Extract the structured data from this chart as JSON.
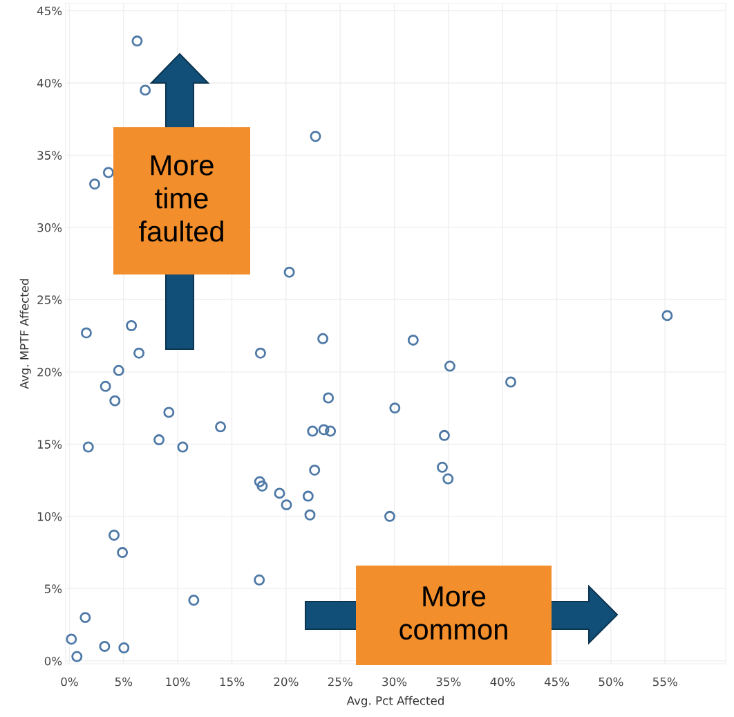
{
  "chart_data": {
    "type": "scatter",
    "xlabel": "Avg. Pct Affected",
    "ylabel": "Avg. MPTF Affected",
    "annotations": [
      "More time faulted",
      "More common"
    ],
    "marker": "circle",
    "grid": true,
    "xlim": [
      -0.35,
      60.6
    ],
    "ylim": [
      -0.2,
      45.5
    ],
    "xticks": [
      {
        "value": 0,
        "label": "0%"
      },
      {
        "value": 5,
        "label": "5%"
      },
      {
        "value": 10,
        "label": "10%"
      },
      {
        "value": 15,
        "label": "15%"
      },
      {
        "value": 20,
        "label": "20%"
      },
      {
        "value": 25,
        "label": "25%"
      },
      {
        "value": 30,
        "label": "30%"
      },
      {
        "value": 35,
        "label": "35%"
      },
      {
        "value": 40,
        "label": "40%"
      },
      {
        "value": 45,
        "label": "45%"
      },
      {
        "value": 50,
        "label": "50%"
      },
      {
        "value": 55,
        "label": "55%"
      }
    ],
    "yticks": [
      {
        "value": 0,
        "label": "0%"
      },
      {
        "value": 5,
        "label": "5%"
      },
      {
        "value": 10,
        "label": "10%"
      },
      {
        "value": 15,
        "label": "15%"
      },
      {
        "value": 20,
        "label": "20%"
      },
      {
        "value": 25,
        "label": "25%"
      },
      {
        "value": 30,
        "label": "30%"
      },
      {
        "value": 35,
        "label": "35%"
      },
      {
        "value": 40,
        "label": "40%"
      },
      {
        "value": 45,
        "label": "45%"
      }
    ],
    "series": [
      {
        "color": "#4e79a7",
        "x": [
          6.25,
          7.0,
          2.33,
          3.6,
          1.56,
          5.72,
          20.3,
          6.42,
          17.64,
          4.55,
          3.33,
          4.2,
          9.18,
          13.95,
          8.27,
          1.74,
          10.46,
          17.57,
          17.8,
          19.4,
          20.04,
          4.12,
          4.89,
          17.53,
          11.48,
          1.46,
          0.18,
          3.25,
          5.03,
          0.69,
          22.72,
          23.4,
          31.74,
          55.2,
          35.13,
          40.75,
          23.91,
          30.05,
          22.45,
          23.49,
          24.1,
          34.62,
          22.64,
          34.43,
          34.96,
          22.04,
          22.21,
          29.58
        ],
        "values": [
          42.9,
          39.5,
          33.0,
          33.8,
          22.7,
          23.2,
          26.9,
          21.3,
          21.3,
          20.1,
          19.0,
          18.0,
          17.2,
          16.2,
          15.3,
          14.8,
          14.8,
          12.4,
          12.1,
          11.6,
          10.8,
          8.7,
          7.5,
          5.6,
          4.2,
          3.0,
          1.5,
          1.0,
          0.9,
          0.3,
          36.3,
          22.3,
          22.2,
          23.9,
          20.4,
          19.3,
          18.2,
          17.5,
          15.9,
          16.0,
          15.9,
          15.6,
          13.2,
          13.4,
          12.6,
          11.4,
          10.1,
          10.0
        ]
      }
    ]
  }
}
